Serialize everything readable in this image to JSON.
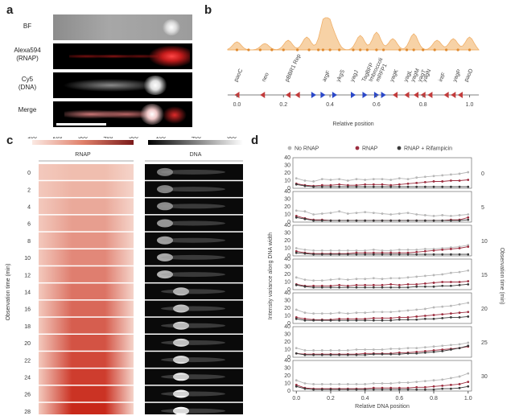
{
  "panel_a": {
    "letter": "a",
    "rows": [
      "BF",
      "Alexa594\n(RNAP)",
      "Cy5\n(DNA)",
      "Merge"
    ]
  },
  "panel_b": {
    "letter": "b",
    "genes": [
      "paoC",
      "neo",
      "pBBR1 Rep",
      "argF",
      "ykgS",
      "yagJ",
      "TagBFP",
      "Imbroccoli",
      "mRFP1",
      "yagK",
      "yagL",
      "yagM",
      "yagT",
      "yagN",
      "intF",
      "yagP",
      "paoD"
    ],
    "axis_ticks": [
      "0.0",
      "0.2",
      "0.4",
      "0.6",
      "0.8",
      "1.0"
    ],
    "xlabel": "Relative position"
  },
  "panel_c": {
    "letter": "c",
    "rnap_scale": [
      "100",
      "200",
      "300",
      "400",
      "500"
    ],
    "dna_scale": [
      "200",
      "400",
      "600"
    ],
    "rnap_title": "RNAP",
    "dna_title": "DNA",
    "ylabel": "Observation time (min)",
    "times": [
      "0",
      "2",
      "4",
      "6",
      "8",
      "10",
      "12",
      "14",
      "16",
      "18",
      "20",
      "22",
      "24",
      "26",
      "28"
    ]
  },
  "chart_data": {
    "type": "line",
    "title": "",
    "xlabel": "Relative DNA position",
    "ylabel": "Intensity variance along DNA width",
    "right_label": "Observation time (min)",
    "legend": [
      "No RNAP",
      "RNAP",
      "RNAP + Rifampicin"
    ],
    "colors": {
      "No RNAP": "#b7b7b7",
      "RNAP": "#9c2d3f",
      "RNAP + Rifampicin": "#3a3a3a"
    },
    "x": [
      0.0,
      0.05,
      0.1,
      0.15,
      0.2,
      0.25,
      0.3,
      0.35,
      0.4,
      0.45,
      0.5,
      0.55,
      0.6,
      0.65,
      0.7,
      0.75,
      0.8,
      0.85,
      0.9,
      0.95,
      1.0
    ],
    "x_ticks": [
      "0.0",
      "0.2",
      "0.4",
      "0.6",
      "0.8",
      "1.0"
    ],
    "ylim": [
      0,
      40
    ],
    "y_ticks": [
      "0",
      "10",
      "20",
      "30",
      "40"
    ],
    "panels": [
      {
        "time": "0",
        "series": [
          {
            "name": "No RNAP",
            "values": [
              13,
              10,
              9,
              12,
              11,
              12,
              10,
              12,
              11,
              12,
              12,
              11,
              13,
              12,
              14,
              15,
              16,
              17,
              18,
              19,
              21
            ]
          },
          {
            "name": "RNAP",
            "values": [
              6,
              4,
              3,
              4,
              4,
              5,
              4,
              4,
              5,
              5,
              5,
              4,
              5,
              6,
              7,
              8,
              9,
              9,
              10,
              10,
              11
            ]
          },
          {
            "name": "RNAP + Rifampicin",
            "values": [
              5,
              3,
              2,
              2,
              2,
              2,
              2,
              2,
              2,
              2,
              2,
              2,
              2,
              2,
              2,
              2,
              2,
              2,
              2,
              2,
              2
            ]
          }
        ]
      },
      {
        "time": "5",
        "series": [
          {
            "name": "No RNAP",
            "values": [
              15,
              14,
              10,
              11,
              12,
              14,
              11,
              12,
              13,
              12,
              11,
              10,
              11,
              12,
              10,
              9,
              8,
              9,
              8,
              9,
              10
            ]
          },
          {
            "name": "RNAP",
            "values": [
              8,
              5,
              3,
              3,
              2,
              2,
              2,
              2,
              2,
              2,
              2,
              2,
              2,
              2,
              2,
              2,
              2,
              2,
              3,
              3,
              6
            ]
          },
          {
            "name": "RNAP + Rifampicin",
            "values": [
              6,
              4,
              2,
              2,
              2,
              2,
              2,
              2,
              2,
              2,
              2,
              2,
              2,
              2,
              2,
              2,
              2,
              2,
              2,
              2,
              3
            ]
          }
        ]
      },
      {
        "time": "10",
        "series": [
          {
            "name": "No RNAP",
            "values": [
              10,
              8,
              7,
              7,
              7,
              7,
              7,
              7,
              7,
              8,
              7,
              7,
              8,
              8,
              8,
              9,
              9,
              10,
              11,
              12,
              14
            ]
          },
          {
            "name": "RNAP",
            "values": [
              6,
              4,
              3,
              3,
              3,
              3,
              3,
              4,
              4,
              4,
              4,
              4,
              4,
              4,
              5,
              6,
              7,
              8,
              9,
              10,
              12
            ]
          },
          {
            "name": "RNAP + Rifampicin",
            "values": [
              4,
              3,
              2,
              2,
              2,
              2,
              2,
              2,
              2,
              2,
              2,
              2,
              2,
              2,
              2,
              2,
              2,
              2,
              2,
              2,
              2
            ]
          }
        ]
      },
      {
        "time": "15",
        "series": [
          {
            "name": "No RNAP",
            "values": [
              16,
              13,
              12,
              12,
              13,
              14,
              13,
              14,
              14,
              15,
              14,
              15,
              15,
              16,
              17,
              18,
              19,
              20,
              22,
              23,
              25
            ]
          },
          {
            "name": "RNAP",
            "values": [
              7,
              5,
              5,
              5,
              5,
              6,
              5,
              6,
              6,
              6,
              6,
              7,
              6,
              7,
              7,
              8,
              9,
              10,
              10,
              10,
              11
            ]
          },
          {
            "name": "RNAP + Rifampicin",
            "values": [
              6,
              4,
              3,
              3,
              3,
              3,
              3,
              3,
              3,
              3,
              3,
              3,
              3,
              3,
              4,
              4,
              4,
              5,
              5,
              6,
              7
            ]
          }
        ]
      },
      {
        "time": "20",
        "series": [
          {
            "name": "No RNAP",
            "values": [
              18,
              14,
              13,
              13,
              13,
              14,
              13,
              14,
              14,
              15,
              15,
              15,
              16,
              17,
              18,
              19,
              21,
              22,
              23,
              25,
              27
            ]
          },
          {
            "name": "RNAP",
            "values": [
              8,
              6,
              5,
              5,
              5,
              6,
              6,
              6,
              6,
              7,
              7,
              7,
              8,
              8,
              9,
              10,
              11,
              12,
              13,
              14,
              15
            ]
          },
          {
            "name": "RNAP + Rifampicin",
            "values": [
              6,
              4,
              4,
              4,
              4,
              4,
              4,
              4,
              4,
              4,
              4,
              4,
              5,
              5,
              5,
              6,
              6,
              7,
              8,
              8,
              9
            ]
          }
        ]
      },
      {
        "time": "25",
        "series": [
          {
            "name": "No RNAP",
            "values": [
              12,
              9,
              9,
              9,
              9,
              9,
              9,
              10,
              10,
              10,
              10,
              11,
              11,
              12,
              12,
              13,
              14,
              15,
              16,
              17,
              19
            ]
          },
          {
            "name": "RNAP",
            "values": [
              5,
              4,
              4,
              4,
              4,
              4,
              4,
              4,
              5,
              5,
              5,
              5,
              6,
              6,
              7,
              8,
              9,
              10,
              11,
              12,
              14
            ]
          },
          {
            "name": "RNAP + Rifampicin",
            "values": [
              5,
              3,
              3,
              3,
              3,
              3,
              3,
              3,
              3,
              4,
              4,
              4,
              4,
              5,
              5,
              6,
              7,
              8,
              10,
              12,
              15
            ]
          }
        ]
      },
      {
        "time": "30",
        "series": [
          {
            "name": "No RNAP",
            "values": [
              14,
              10,
              9,
              9,
              9,
              9,
              9,
              9,
              9,
              10,
              10,
              10,
              11,
              11,
              12,
              13,
              14,
              15,
              17,
              19,
              23
            ]
          },
          {
            "name": "RNAP",
            "values": [
              8,
              4,
              3,
              3,
              3,
              3,
              3,
              3,
              3,
              4,
              4,
              4,
              4,
              4,
              5,
              5,
              6,
              7,
              8,
              9,
              12
            ]
          },
          {
            "name": "RNAP + Rifampicin",
            "values": [
              6,
              3,
              2,
              2,
              2,
              2,
              2,
              2,
              2,
              2,
              2,
              2,
              2,
              2,
              2,
              2,
              2,
              3,
              3,
              4,
              6
            ]
          }
        ]
      }
    ]
  },
  "panel_d": {
    "letter": "d"
  }
}
